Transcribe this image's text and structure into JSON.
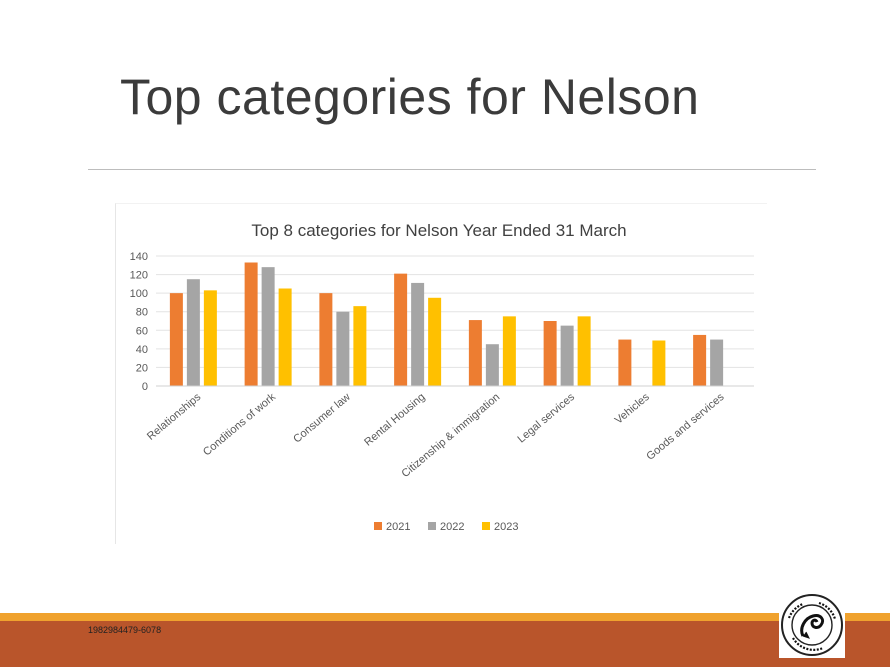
{
  "slide": {
    "title": "Top categories for Nelson",
    "code": "1982984479-6078",
    "seal_text": "CITIZENS ADVICE BUREAU"
  },
  "colors": {
    "2021": "#ed7d31",
    "2022": "#a5a5a5",
    "2023": "#ffc000",
    "footer_orange": "#f0a22e",
    "footer_rust": "#b9552b"
  },
  "chart_data": {
    "type": "bar",
    "title": "Top 8 categories for Nelson Year Ended 31 March",
    "xlabel": "",
    "ylabel": "",
    "ylim": [
      0,
      140
    ],
    "yticks": [
      0,
      20,
      40,
      60,
      80,
      100,
      120,
      140
    ],
    "grid": true,
    "legend": "bottom",
    "categories": [
      "Relationships",
      "Conditions of work",
      "Consumer law",
      "Rental Housing",
      "Citizenship & immigration",
      "Legal services",
      "Vehicles",
      "Goods and services"
    ],
    "series": [
      {
        "name": "2021",
        "color": "#ed7d31",
        "values": [
          100,
          133,
          100,
          121,
          71,
          70,
          50,
          55
        ]
      },
      {
        "name": "2022",
        "color": "#a5a5a5",
        "values": [
          115,
          128,
          80,
          111,
          45,
          65,
          null,
          50
        ]
      },
      {
        "name": "2023",
        "color": "#ffc000",
        "values": [
          103,
          105,
          86,
          95,
          75,
          75,
          49,
          null
        ]
      }
    ]
  }
}
